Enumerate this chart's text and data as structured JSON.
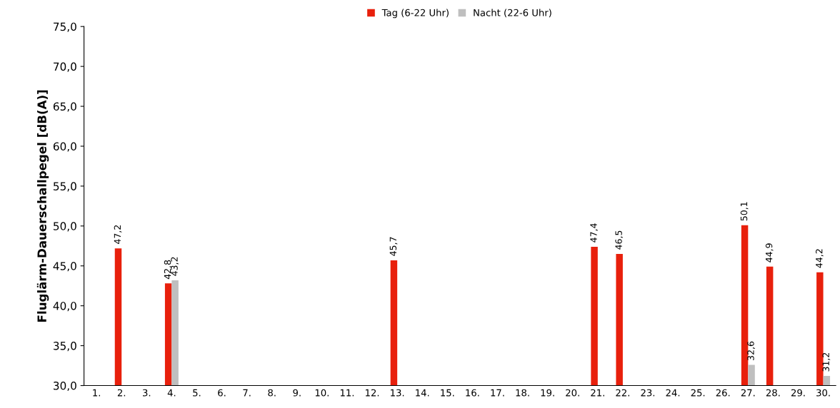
{
  "chart_data": {
    "type": "bar",
    "ylabel": "Fluglärm-Dauerschallpegel [dB(A)]",
    "categories": [
      "1.",
      "2.",
      "3.",
      "4.",
      "5.",
      "6.",
      "7.",
      "8.",
      "9.",
      "10.",
      "11.",
      "12.",
      "13.",
      "14.",
      "15.",
      "16.",
      "17.",
      "18.",
      "19.",
      "20.",
      "21.",
      "22.",
      "23.",
      "24.",
      "25.",
      "26.",
      "27.",
      "28.",
      "29.",
      "30."
    ],
    "series": [
      {
        "name": "Tag (6-22 Uhr)",
        "color": "#e8200c",
        "values": [
          null,
          47.2,
          null,
          42.8,
          null,
          null,
          null,
          null,
          null,
          null,
          null,
          null,
          45.7,
          null,
          null,
          null,
          null,
          null,
          null,
          null,
          47.4,
          46.5,
          null,
          null,
          null,
          null,
          50.1,
          44.9,
          null,
          44.2
        ],
        "value_labels": [
          null,
          "47,2",
          null,
          "42,8",
          null,
          null,
          null,
          null,
          null,
          null,
          null,
          null,
          "45,7",
          null,
          null,
          null,
          null,
          null,
          null,
          null,
          "47,4",
          "46,5",
          null,
          null,
          null,
          null,
          "50,1",
          "44,9",
          null,
          "44,2"
        ]
      },
      {
        "name": "Nacht (22-6 Uhr)",
        "color": "#bfbfbf",
        "values": [
          null,
          null,
          null,
          43.2,
          null,
          null,
          null,
          null,
          null,
          null,
          null,
          null,
          null,
          null,
          null,
          null,
          null,
          null,
          null,
          null,
          null,
          null,
          null,
          null,
          null,
          null,
          32.6,
          null,
          null,
          31.2
        ],
        "value_labels": [
          null,
          null,
          null,
          "43,2",
          null,
          null,
          null,
          null,
          null,
          null,
          null,
          null,
          null,
          null,
          null,
          null,
          null,
          null,
          null,
          null,
          null,
          null,
          null,
          null,
          null,
          null,
          "32,6",
          null,
          null,
          "31,2"
        ]
      }
    ],
    "ylim": [
      30,
      75
    ],
    "yticks": [
      {
        "value": 30,
        "label": "30,0"
      },
      {
        "value": 35,
        "label": "35,0"
      },
      {
        "value": 40,
        "label": "40,0"
      },
      {
        "value": 45,
        "label": "45,0"
      },
      {
        "value": 50,
        "label": "50,0"
      },
      {
        "value": 55,
        "label": "55,0"
      },
      {
        "value": 60,
        "label": "60,0"
      },
      {
        "value": 65,
        "label": "65,0"
      },
      {
        "value": 70,
        "label": "70,0"
      },
      {
        "value": 75,
        "label": "75,0"
      }
    ],
    "grid": false,
    "legend": "top"
  }
}
